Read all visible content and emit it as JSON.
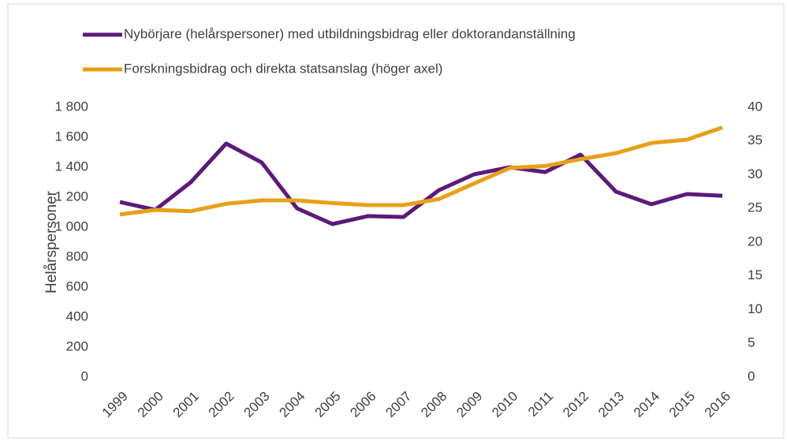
{
  "chart_data": {
    "type": "line",
    "ylabel": "Helårspersoner",
    "categories": [
      "1999",
      "2000",
      "2001",
      "2002",
      "2003",
      "2004",
      "2005",
      "2006",
      "2007",
      "2008",
      "2009",
      "2010",
      "2011",
      "2012",
      "2013",
      "2014",
      "2015",
      "2016"
    ],
    "series": [
      {
        "name": "Nybörjare (helårspersoner) med utbildningsbidrag eller doktorandanställning",
        "color": "#5c1a7a",
        "values": [
          1168,
          1116,
          1300,
          1558,
          1432,
          1126,
          1021,
          1074,
          1068,
          1247,
          1353,
          1400,
          1368,
          1484,
          1237,
          1153,
          1221,
          1210
        ]
      },
      {
        "name": "Forskningsbidrag och direkta statsanslag (höger axel)",
        "color": "#e6a118",
        "axis": "y2",
        "values": [
          24.1,
          24.8,
          24.6,
          25.7,
          26.2,
          26.2,
          25.8,
          25.5,
          25.5,
          26.4,
          28.7,
          31.0,
          31.3,
          32.3,
          33.2,
          34.7,
          35.2,
          37.0
        ]
      }
    ],
    "ylim": [
      0,
      1800
    ],
    "yticks": [
      0,
      200,
      400,
      600,
      800,
      {
        "value": 1000,
        "label": "1 000"
      },
      {
        "value": 1200,
        "label": "1 200"
      },
      {
        "value": 1400,
        "label": "1 400"
      },
      {
        "value": 1600,
        "label": "1 600"
      },
      {
        "value": 1800,
        "label": "1 800"
      }
    ],
    "y2lim": [
      0,
      40
    ],
    "y2ticks": [
      0,
      5,
      10,
      15,
      20,
      25,
      30,
      35,
      40
    ],
    "grid": false
  }
}
